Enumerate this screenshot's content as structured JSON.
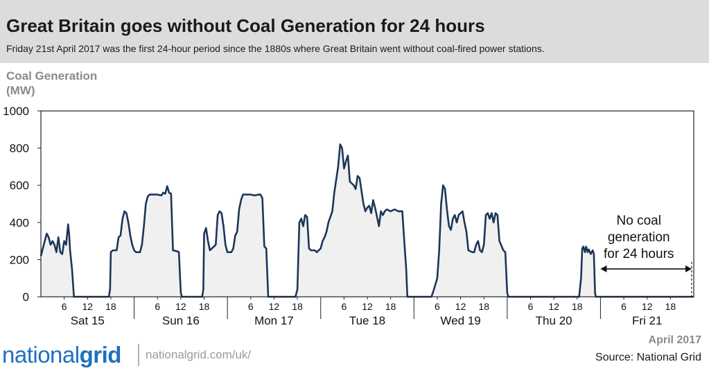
{
  "header": {
    "title": "Great Britain goes without Coal Generation for 24 hours",
    "subtitle": "Friday 21st April 2017 was the first 24-hour period since the 1880s where Great Britain went without coal-fired power stations."
  },
  "footer": {
    "logo_prefix": "national",
    "logo_suffix": "grid",
    "url": "nationalgrid.com/uk/",
    "date": "April 2017",
    "source": "Source: National Grid"
  },
  "colors": {
    "line": "#1c3557",
    "fill": "#f0f0f0",
    "header_bg": "#dcdcdc",
    "brand": "#1f6fbf"
  },
  "chart_data": {
    "type": "area",
    "title": "Great Britain goes without Coal Generation for 24 hours",
    "ylabel_lines": [
      "Coal Generation",
      "(MW)"
    ],
    "ylim": [
      0,
      1000
    ],
    "yticks": [
      0,
      200,
      400,
      600,
      800,
      1000
    ],
    "xlim_hours": [
      0,
      168
    ],
    "day_labels": [
      "Sat 15",
      "Sun 16",
      "Mon 17",
      "Tue 18",
      "Wed 19",
      "Thu 20",
      "Fri 21"
    ],
    "hour_ticks": [
      "6",
      "12",
      "18"
    ],
    "annotation": {
      "lines": [
        "No coal",
        "generation",
        "for 24 hours"
      ]
    },
    "grid": false,
    "legend": "none",
    "series": [
      {
        "points": [
          [
            0,
            220
          ],
          [
            0.5,
            260
          ],
          [
            1,
            300
          ],
          [
            1.5,
            340
          ],
          [
            2,
            320
          ],
          [
            2.5,
            280
          ],
          [
            3,
            300
          ],
          [
            3.5,
            280
          ],
          [
            4,
            240
          ],
          [
            4.5,
            320
          ],
          [
            5,
            240
          ],
          [
            5.5,
            230
          ],
          [
            6,
            300
          ],
          [
            6.5,
            280
          ],
          [
            7,
            390
          ],
          [
            7.3,
            330
          ],
          [
            7.5,
            250
          ],
          [
            8,
            150
          ],
          [
            8.5,
            0
          ],
          [
            11.5,
            0
          ],
          [
            12.5,
            0
          ],
          [
            17.5,
            0
          ],
          [
            17.8,
            40
          ],
          [
            18,
            240
          ],
          [
            18.5,
            250
          ],
          [
            19.5,
            250
          ],
          [
            20,
            320
          ],
          [
            20.5,
            330
          ],
          [
            21,
            420
          ],
          [
            21.5,
            460
          ],
          [
            22,
            450
          ],
          [
            22.5,
            400
          ],
          [
            23,
            330
          ],
          [
            23.5,
            280
          ],
          [
            24,
            250
          ],
          [
            24.5,
            240
          ],
          [
            25.5,
            240
          ],
          [
            26,
            280
          ],
          [
            26.5,
            380
          ],
          [
            27,
            500
          ],
          [
            27.5,
            540
          ],
          [
            28,
            550
          ],
          [
            29,
            550
          ],
          [
            30,
            550
          ],
          [
            31,
            545
          ],
          [
            31.5,
            560
          ],
          [
            32,
            555
          ],
          [
            32.5,
            595
          ],
          [
            33,
            560
          ],
          [
            33.5,
            555
          ],
          [
            34,
            250
          ],
          [
            35,
            245
          ],
          [
            35.5,
            240
          ],
          [
            36,
            20
          ],
          [
            36.3,
            0
          ],
          [
            41.5,
            0
          ],
          [
            41.8,
            40
          ],
          [
            42,
            340
          ],
          [
            42.5,
            370
          ],
          [
            43,
            300
          ],
          [
            43.5,
            250
          ],
          [
            44,
            260
          ],
          [
            45,
            280
          ],
          [
            45.5,
            440
          ],
          [
            46,
            460
          ],
          [
            46.5,
            450
          ],
          [
            47,
            380
          ],
          [
            47.5,
            280
          ],
          [
            48,
            240
          ],
          [
            49,
            240
          ],
          [
            49.5,
            260
          ],
          [
            50,
            330
          ],
          [
            50.5,
            350
          ],
          [
            51,
            470
          ],
          [
            51.5,
            520
          ],
          [
            52,
            550
          ],
          [
            53,
            550
          ],
          [
            54,
            550
          ],
          [
            55,
            545
          ],
          [
            56,
            550
          ],
          [
            56.5,
            550
          ],
          [
            57,
            530
          ],
          [
            57.5,
            270
          ],
          [
            58,
            260
          ],
          [
            58.5,
            0
          ],
          [
            65.5,
            0
          ],
          [
            66,
            40
          ],
          [
            66.5,
            400
          ],
          [
            67,
            420
          ],
          [
            67.5,
            380
          ],
          [
            68,
            440
          ],
          [
            68.5,
            430
          ],
          [
            69,
            260
          ],
          [
            69.5,
            250
          ],
          [
            70.5,
            250
          ],
          [
            71,
            240
          ],
          [
            72,
            260
          ],
          [
            72.5,
            300
          ],
          [
            73,
            320
          ],
          [
            73.5,
            350
          ],
          [
            74,
            400
          ],
          [
            74.5,
            430
          ],
          [
            75,
            460
          ],
          [
            75.5,
            560
          ],
          [
            76,
            630
          ],
          [
            76.5,
            700
          ],
          [
            77,
            820
          ],
          [
            77.5,
            800
          ],
          [
            78,
            690
          ],
          [
            78.5,
            730
          ],
          [
            79,
            760
          ],
          [
            79.5,
            620
          ],
          [
            80,
            610
          ],
          [
            80.5,
            600
          ],
          [
            81,
            580
          ],
          [
            81.5,
            650
          ],
          [
            82,
            640
          ],
          [
            82.5,
            570
          ],
          [
            83,
            500
          ],
          [
            83.5,
            460
          ],
          [
            84,
            480
          ],
          [
            84.5,
            490
          ],
          [
            85,
            450
          ],
          [
            85.5,
            520
          ],
          [
            86,
            480
          ],
          [
            86.5,
            430
          ],
          [
            87,
            380
          ],
          [
            87.5,
            460
          ],
          [
            88,
            440
          ],
          [
            88.5,
            460
          ],
          [
            89,
            470
          ],
          [
            90,
            460
          ],
          [
            91,
            470
          ],
          [
            92,
            460
          ],
          [
            93,
            460
          ],
          [
            93.5,
            300
          ],
          [
            94,
            150
          ],
          [
            94.3,
            0
          ],
          [
            100.5,
            0
          ],
          [
            101,
            30
          ],
          [
            102,
            100
          ],
          [
            102.5,
            250
          ],
          [
            103,
            500
          ],
          [
            103.5,
            600
          ],
          [
            104,
            580
          ],
          [
            104.5,
            470
          ],
          [
            105,
            380
          ],
          [
            105.5,
            360
          ],
          [
            106,
            420
          ],
          [
            106.5,
            440
          ],
          [
            107,
            400
          ],
          [
            107.5,
            440
          ],
          [
            108,
            450
          ],
          [
            108.5,
            460
          ],
          [
            109,
            400
          ],
          [
            109.5,
            350
          ],
          [
            110,
            250
          ],
          [
            111,
            240
          ],
          [
            111.5,
            240
          ],
          [
            112,
            280
          ],
          [
            112.5,
            300
          ],
          [
            113,
            250
          ],
          [
            113.5,
            240
          ],
          [
            114,
            280
          ],
          [
            114.5,
            440
          ],
          [
            115,
            450
          ],
          [
            115.5,
            420
          ],
          [
            116,
            450
          ],
          [
            116.5,
            400
          ],
          [
            117,
            450
          ],
          [
            117.5,
            440
          ],
          [
            118,
            300
          ],
          [
            119,
            250
          ],
          [
            119.5,
            240
          ],
          [
            120,
            20
          ],
          [
            120.3,
            0
          ],
          [
            128,
            0
          ],
          [
            138.5,
            0
          ],
          [
            139,
            100
          ],
          [
            139.3,
            260
          ],
          [
            139.6,
            270
          ],
          [
            140,
            240
          ],
          [
            140.3,
            270
          ],
          [
            140.7,
            240
          ],
          [
            141,
            255
          ],
          [
            141.5,
            230
          ],
          [
            142,
            250
          ],
          [
            142.3,
            230
          ],
          [
            142.6,
            20
          ],
          [
            142.8,
            0
          ],
          [
            168,
            0
          ]
        ]
      }
    ]
  }
}
